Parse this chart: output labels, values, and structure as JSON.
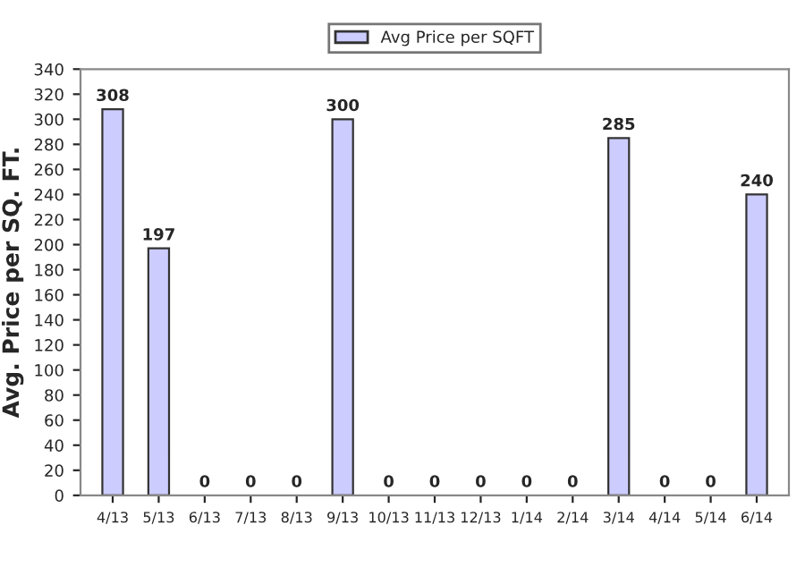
{
  "chart_data": {
    "type": "bar",
    "ylabel": "Avg. Price per SQ. FT.",
    "categories": [
      "4/13",
      "5/13",
      "6/13",
      "7/13",
      "8/13",
      "9/13",
      "10/13",
      "11/13",
      "12/13",
      "1/14",
      "2/14",
      "3/14",
      "4/14",
      "5/14",
      "6/14"
    ],
    "series": [
      {
        "name": "Avg Price per SQFT",
        "color": "#ccccff",
        "values": [
          308,
          197,
          0,
          0,
          0,
          300,
          0,
          0,
          0,
          0,
          0,
          285,
          0,
          0,
          240
        ]
      }
    ],
    "ylim": [
      0,
      340
    ],
    "yticks": [
      0,
      20,
      40,
      60,
      80,
      100,
      120,
      140,
      160,
      180,
      200,
      220,
      240,
      260,
      280,
      300,
      320,
      340
    ],
    "data_labels": true,
    "legend": "top"
  }
}
